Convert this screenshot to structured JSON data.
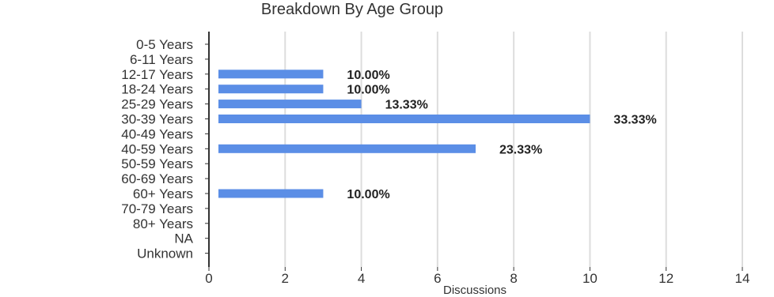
{
  "chart_data": {
    "type": "bar",
    "orientation": "horizontal",
    "title": "Breakdown By Age Group",
    "xlabel": "Discussions",
    "ylabel": "",
    "xlim": [
      0,
      14
    ],
    "xticks": [
      0,
      2,
      4,
      6,
      8,
      10,
      12,
      14
    ],
    "grid": "vertical",
    "categories": [
      "0-5 Years",
      "6-11 Years",
      "12-17 Years",
      "18-24 Years",
      "25-29 Years",
      "30-39 Years",
      "40-49 Years",
      "40-59 Years",
      "50-59 Years",
      "60-69 Years",
      "60+ Years",
      "70-79 Years",
      "80+ Years",
      "NA",
      "Unknown"
    ],
    "values": [
      0,
      0,
      3,
      3,
      4,
      10,
      0,
      7,
      0,
      0,
      3,
      0,
      0,
      0,
      0
    ],
    "data_labels": [
      "",
      "",
      "10.00%",
      "10.00%",
      "13.33%",
      "33.33%",
      "",
      "23.33%",
      "",
      "",
      "10.00%",
      "",
      "",
      "",
      ""
    ],
    "colors": {
      "bar": "#5b8ee6",
      "grid": "#dddddd",
      "axis": "#333333"
    }
  }
}
